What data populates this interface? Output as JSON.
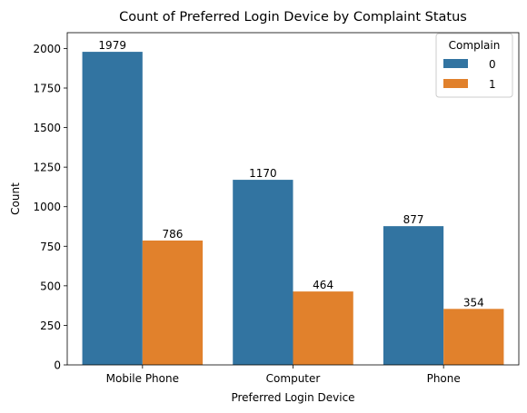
{
  "chart_data": {
    "type": "bar",
    "title": "Count of Preferred Login Device by Complaint Status",
    "xlabel": "Preferred Login Device",
    "ylabel": "Count",
    "categories": [
      "Mobile Phone",
      "Computer",
      "Phone"
    ],
    "series": [
      {
        "name": "0",
        "values": [
          1979,
          1170,
          877
        ],
        "color": "#3274a1"
      },
      {
        "name": "1",
        "values": [
          786,
          464,
          354
        ],
        "color": "#e1812c"
      }
    ],
    "ylim": [
      0,
      2100
    ],
    "yticks": [
      0,
      250,
      500,
      750,
      1000,
      1250,
      1500,
      1750,
      2000
    ],
    "legend": {
      "title": "Complain",
      "placement": "top-right"
    },
    "grid": false
  }
}
